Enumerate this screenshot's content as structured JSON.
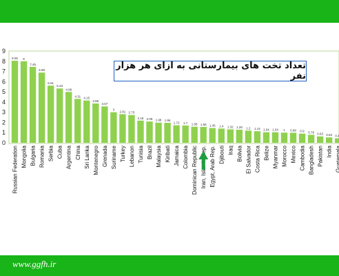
{
  "footer": {
    "site": "www.ggfh.ir"
  },
  "colors": {
    "band": "#18b418",
    "bar": "#8fd14f",
    "arrow": "#1e9e3e",
    "title_border": "#1f5fbf"
  },
  "arrow_target": "Iran, Islamic Rep.",
  "chart_data": {
    "type": "bar",
    "title": "تعداد تخت های بیمارستانی به ازای هر هزار نفر",
    "xlabel": "",
    "ylabel": "",
    "ylim": [
      0,
      9
    ],
    "yticks": [
      0,
      1,
      2,
      3,
      4,
      5,
      6,
      7,
      8,
      9
    ],
    "grid": false,
    "legend": "none",
    "categories": [
      "Russian Federation",
      "Mongolia",
      "Bulgaria",
      "Romania",
      "Serbia",
      "Cuba",
      "Argentina",
      "China",
      "Sri Lanka",
      "Montenegro",
      "Grenada",
      "Suriname",
      "Turkey",
      "Lebanon",
      "Tunisia",
      "Brazil",
      "Malaysia",
      "Kiribati",
      "Jamaica",
      "Colombia",
      "Dominican Republic",
      "Iran, Islamic Rep.",
      "Egypt, Arab Rep.",
      "Djibouti",
      "Iraq",
      "Bolivia",
      "El Salvador",
      "Costa Rica",
      "Belize",
      "Myanmar",
      "Morocco",
      "Mexico",
      "Cambodia",
      "Bangladesh",
      "Pakistan",
      "India",
      "Guatemala"
    ],
    "values": [
      8.05,
      8,
      7.45,
      6.89,
      5.61,
      5.33,
      4.99,
      4.31,
      4.15,
      3.86,
      3.57,
      3,
      2.81,
      2.73,
      2.18,
      2.09,
      1.98,
      1.96,
      1.72,
      1.7,
      1.58,
      1.56,
      1.45,
      1.4,
      1.32,
      1.29,
      1.2,
      1.14,
      1.04,
      1.04,
      1,
      0.99,
      0.9,
      0.79,
      0.63,
      0.53,
      0.44
    ],
    "value_labels": [
      "8.05",
      "8",
      "7.45",
      "6.89",
      "5.61",
      "5.33",
      "4.99",
      "4.31",
      "4.15",
      "3.86",
      "3.57",
      "3",
      "2.81",
      "2.73",
      "2.18",
      "2.09",
      "1.98",
      "1.96",
      "1.72",
      "1.7",
      "1.58",
      "1.56",
      "1.45",
      "1.4",
      "1.32",
      "1.29",
      "1.2",
      "1.14",
      "1.04",
      "1.04",
      "1",
      "0.99",
      "0.9",
      "0.79",
      "0.63",
      "0.53",
      "0.44"
    ]
  }
}
